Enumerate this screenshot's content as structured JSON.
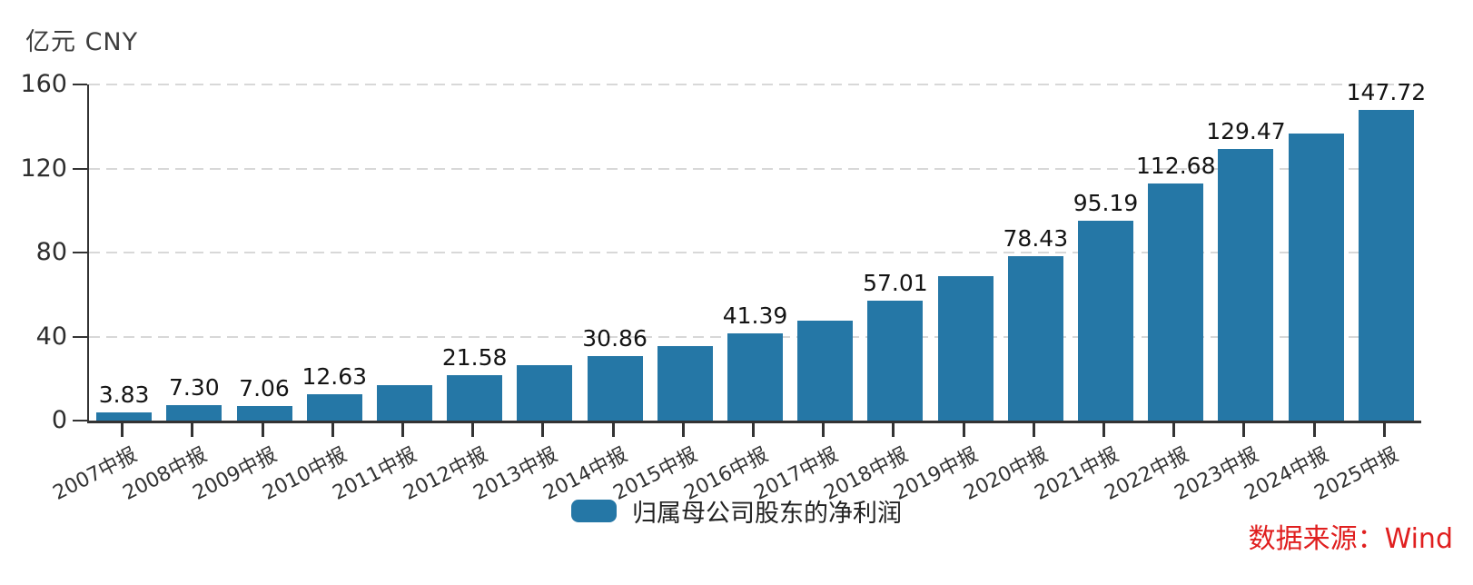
{
  "header": {
    "unit_label": "亿元 CNY"
  },
  "legend": {
    "series_label": "归属母公司股东的净利润"
  },
  "footer": {
    "source_text": "数据来源：Wind"
  },
  "colors": {
    "bar": "#2577a6",
    "axis": "#333333",
    "grid": "#d8d8d8",
    "value_label": "#141414",
    "source_red": "#e01f1f"
  },
  "chart_data": {
    "type": "bar",
    "title": "",
    "ylabel": "亿元 CNY",
    "xlabel": "",
    "ylim": [
      0,
      160
    ],
    "yticks": [
      0,
      40,
      80,
      120,
      160
    ],
    "grid": "horizontal-dashed",
    "legend_position": "bottom-center",
    "categories": [
      "2007中报",
      "2008中报",
      "2009中报",
      "2010中报",
      "2011中报",
      "2012中报",
      "2013中报",
      "2014中报",
      "2015中报",
      "2016中报",
      "2017中报",
      "2018中报",
      "2019中报",
      "2020中报",
      "2021中报",
      "2022中报",
      "2023中报",
      "2024中报",
      "2025中报"
    ],
    "series": [
      {
        "name": "归属母公司股东的净利润",
        "values": [
          3.83,
          7.3,
          7.06,
          12.63,
          16.9,
          21.58,
          26.4,
          30.86,
          35.6,
          41.39,
          47.7,
          57.01,
          68.7,
          78.43,
          95.19,
          112.68,
          129.47,
          136.8,
          147.72
        ]
      }
    ],
    "value_labels": [
      "3.83",
      "7.30",
      "7.06",
      "12.63",
      "",
      "21.58",
      "",
      "30.86",
      "",
      "41.39",
      "",
      "57.01",
      "",
      "78.43",
      "95.19",
      "112.68",
      "129.47",
      "",
      "147.72"
    ]
  }
}
